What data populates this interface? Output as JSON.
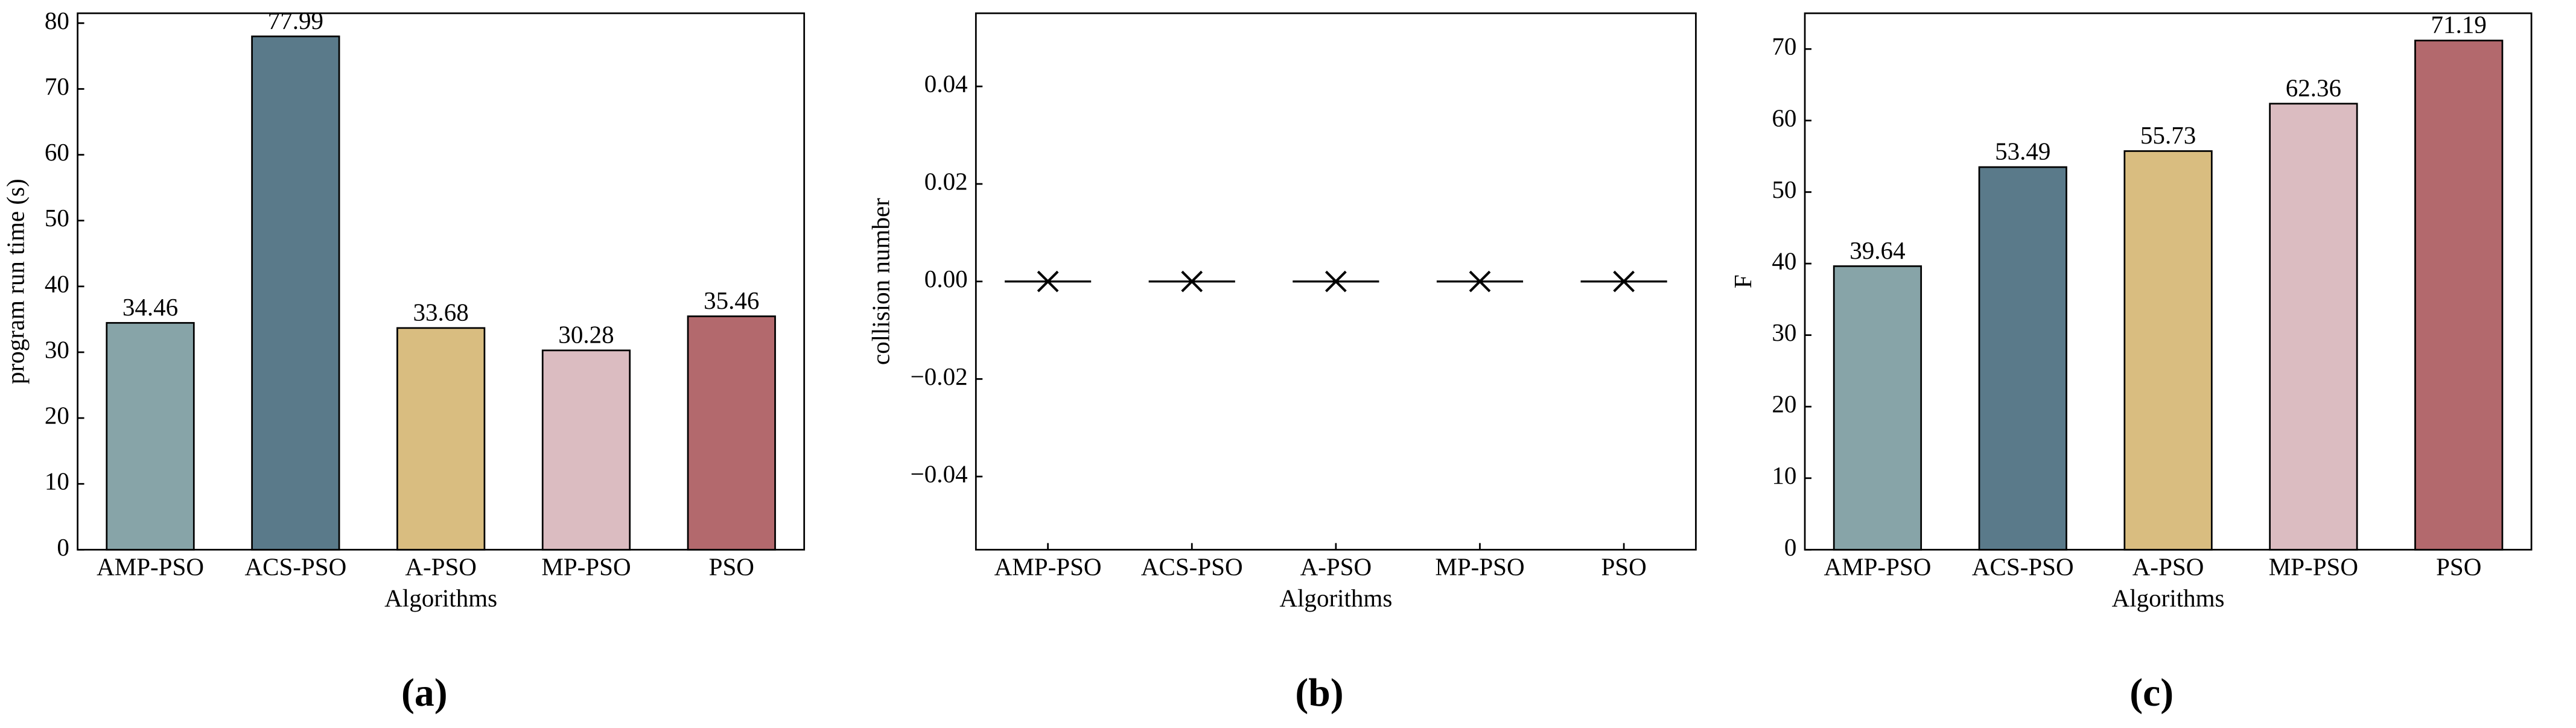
{
  "chart_data": [
    {
      "type": "bar",
      "label": "(a)",
      "xlabel": "Algorithms",
      "ylabel": "program run time (s)",
      "categories": [
        "AMP-PSO",
        "ACS-PSO",
        "A-PSO",
        "MP-PSO",
        "PSO"
      ],
      "values": [
        34.46,
        77.99,
        33.68,
        30.28,
        35.46
      ],
      "colors": [
        "#87a4a8",
        "#5a7a8a",
        "#d9bd80",
        "#dbbcc1",
        "#b3696d"
      ],
      "ylim": [
        0,
        81.5
      ],
      "yticks": [
        0,
        10,
        20,
        30,
        40,
        50,
        60,
        70,
        80
      ],
      "grid": false
    },
    {
      "type": "point",
      "label": "(b)",
      "xlabel": "Algorithms",
      "ylabel": "collision number",
      "categories": [
        "AMP-PSO",
        "ACS-PSO",
        "A-PSO",
        "MP-PSO",
        "PSO"
      ],
      "values": [
        0,
        0,
        0,
        0,
        0
      ],
      "marker": "x",
      "color": "#000000",
      "ylim": [
        -0.055,
        0.055
      ],
      "yticks": [
        {
          "value": -0.04,
          "label": "−0.04"
        },
        {
          "value": -0.02,
          "label": "−0.02"
        },
        {
          "value": 0,
          "label": "0.00"
        },
        0.02,
        0.04
      ],
      "grid": false
    },
    {
      "type": "bar",
      "label": "(c)",
      "xlabel": "Algorithms",
      "ylabel": "F",
      "categories": [
        "AMP-PSO",
        "ACS-PSO",
        "A-PSO",
        "MP-PSO",
        "PSO"
      ],
      "values": [
        39.64,
        53.49,
        55.73,
        62.36,
        71.19
      ],
      "colors": [
        "#87a4a8",
        "#5a7a8a",
        "#d9bd80",
        "#dbbcc1",
        "#b3696d"
      ],
      "ylim": [
        0,
        75
      ],
      "yticks": [
        0,
        10,
        20,
        30,
        40,
        50,
        60,
        70
      ],
      "grid": false
    }
  ]
}
